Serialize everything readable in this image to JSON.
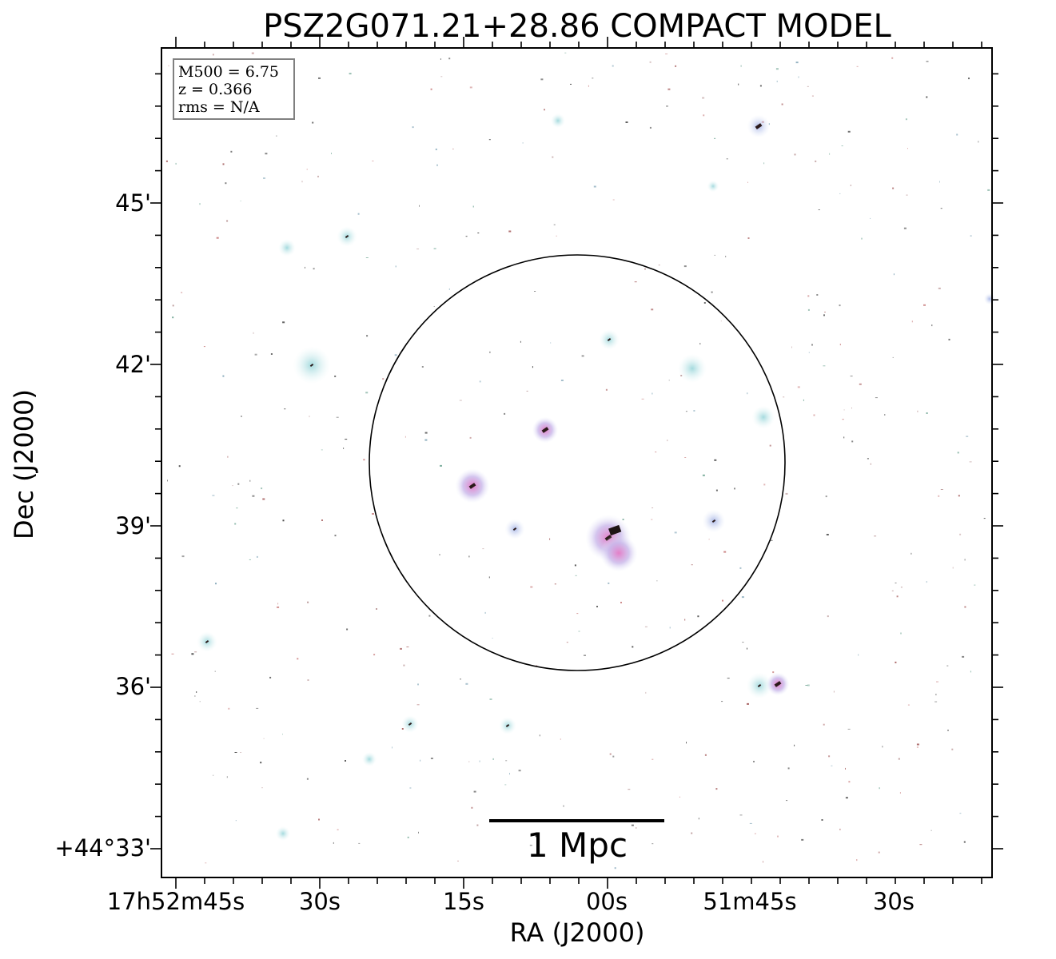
{
  "title": "PSZ2G071.21+28.86 COMPACT MODEL",
  "axes": {
    "xlabel": "RA (J2000)",
    "ylabel": "Dec (J2000)",
    "x_ticks": [
      "17h52m45s",
      "30s",
      "15s",
      "00s",
      "51m45s",
      "30s"
    ],
    "y_ticks": [
      "45'",
      "42'",
      "39'",
      "36'",
      "+44°33'"
    ]
  },
  "legend": {
    "lines": [
      "M500 = 6.75",
      "z = 0.366",
      "rms = N/A"
    ]
  },
  "scale_bar": {
    "label": "1 Mpc"
  },
  "colors": {
    "frame": "#000000",
    "source_cyan": "#b8e2e6",
    "source_blue": "#b9c6ea",
    "source_pink": "#e79ad0",
    "source_core": "#2b1a1a"
  }
}
